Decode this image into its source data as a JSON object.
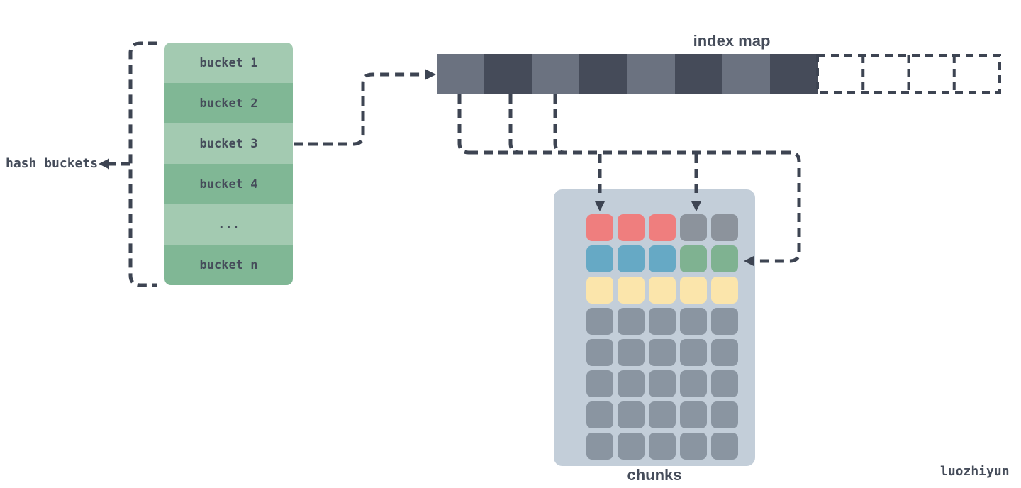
{
  "labels": {
    "hash_buckets": "hash buckets",
    "index_map": "index map",
    "chunks": "chunks",
    "watermark": "luozhiyun"
  },
  "buckets": {
    "rows": [
      "bucket 1",
      "bucket 2",
      "bucket 3",
      "bucket 4",
      "...",
      "bucket n"
    ]
  },
  "index_bar": {
    "segments": [
      "light",
      "dark",
      "light",
      "dark",
      "light",
      "dark",
      "light",
      "dark"
    ],
    "empty_cell_count": 4
  },
  "chunks_grid": {
    "columns": 5,
    "rows": 8,
    "cells": [
      "red",
      "red",
      "red",
      "gray-dark",
      "gray-dark",
      "blue",
      "blue",
      "blue",
      "green",
      "green",
      "yellow",
      "yellow",
      "yellow",
      "yellow",
      "yellow",
      "gray",
      "gray",
      "gray",
      "gray",
      "gray",
      "gray",
      "gray",
      "gray",
      "gray",
      "gray",
      "gray",
      "gray",
      "gray",
      "gray",
      "gray",
      "gray",
      "gray",
      "gray",
      "gray",
      "gray",
      "gray",
      "gray",
      "gray",
      "gray",
      "gray"
    ]
  },
  "colors": {
    "background": "#ffffff",
    "connector": "#3d4452",
    "text": "#454c5a",
    "bucket-light": "#a3cab1",
    "bucket-dark": "#80b795",
    "bar-light": "#6b7280",
    "bar-dark": "#454b59",
    "panel": "#c3ced9",
    "chunk-red": "#ef7e7e",
    "chunk-blue": "#66a9c5",
    "chunk-green": "#7fb291",
    "chunk-yellow": "#fbe5ab",
    "chunk-gray": "#8a95a1",
    "chunk-gray-dark": "#8c939c"
  }
}
